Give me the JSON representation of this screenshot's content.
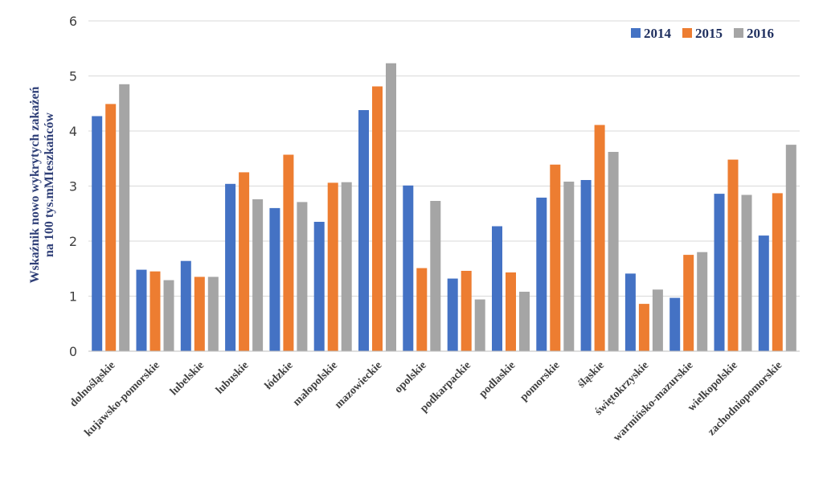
{
  "chart_data": {
    "type": "bar",
    "ylabel_line1": "Wskaźnik nowo wykrytych zakażeń",
    "ylabel_line2": "na 100 tys.mMIeszkańców",
    "ylim": [
      0,
      6
    ],
    "yticks": [
      0,
      1,
      2,
      3,
      4,
      5,
      6
    ],
    "grid": true,
    "legend_position": "top-right",
    "categories": [
      "dolnośląskie",
      "kujawsko-pomorskie",
      "lubelskie",
      "lubuskie",
      "łódzkie",
      "małopolskie",
      "mazowieckie",
      "opolskie",
      "podkarpackie",
      "podlaskie",
      "pomorskie",
      "śląskie",
      "świętokrzyskie",
      "warmińsko-mazurskie",
      "wielkopolskie",
      "zachodniopomorskie"
    ],
    "series": [
      {
        "name": "2014",
        "color": "#4472c4",
        "values": [
          4.27,
          1.48,
          1.64,
          3.04,
          2.6,
          2.35,
          4.38,
          3.01,
          1.32,
          2.27,
          2.79,
          3.11,
          1.41,
          0.97,
          2.86,
          2.1
        ]
      },
      {
        "name": "2015",
        "color": "#ed7d31",
        "values": [
          4.49,
          1.45,
          1.35,
          3.25,
          3.57,
          3.06,
          4.81,
          1.51,
          1.46,
          1.43,
          3.39,
          4.11,
          0.86,
          1.75,
          3.48,
          2.87
        ]
      },
      {
        "name": "2016",
        "color": "#a5a5a5",
        "values": [
          4.85,
          1.29,
          1.35,
          2.76,
          2.71,
          3.07,
          5.23,
          2.73,
          0.94,
          1.08,
          3.08,
          3.62,
          1.12,
          1.8,
          2.84,
          3.75
        ]
      }
    ]
  }
}
